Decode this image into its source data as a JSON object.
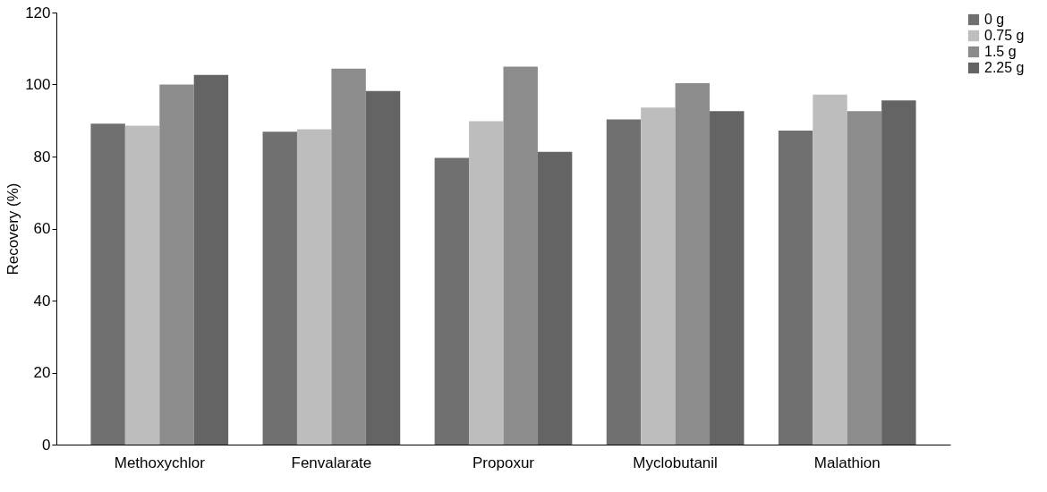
{
  "chart_data": {
    "type": "bar",
    "ylabel": "Recovery (%)",
    "categories": [
      "Methoxychlor",
      "Fenvalarate",
      "Propoxur",
      "Myclobutanil",
      "Malathion"
    ],
    "series": [
      {
        "name": "0 g",
        "color": "#707070",
        "values": [
          89.1,
          86.9,
          79.6,
          90.3,
          87.2
        ]
      },
      {
        "name": "0.75 g",
        "color": "#bdbdbd",
        "values": [
          88.6,
          87.6,
          89.8,
          93.6,
          97.2
        ]
      },
      {
        "name": "1.5 g",
        "color": "#8c8c8c",
        "values": [
          100,
          104.4,
          105,
          100.4,
          92.6
        ]
      },
      {
        "name": "2.25 g",
        "color": "#646464",
        "values": [
          102.7,
          98.2,
          81.3,
          92.6,
          95.6
        ]
      }
    ],
    "ylim": [
      0,
      120
    ],
    "yticks": [
      0,
      20,
      40,
      60,
      80,
      100,
      120
    ],
    "grid": false,
    "legend": "right"
  }
}
